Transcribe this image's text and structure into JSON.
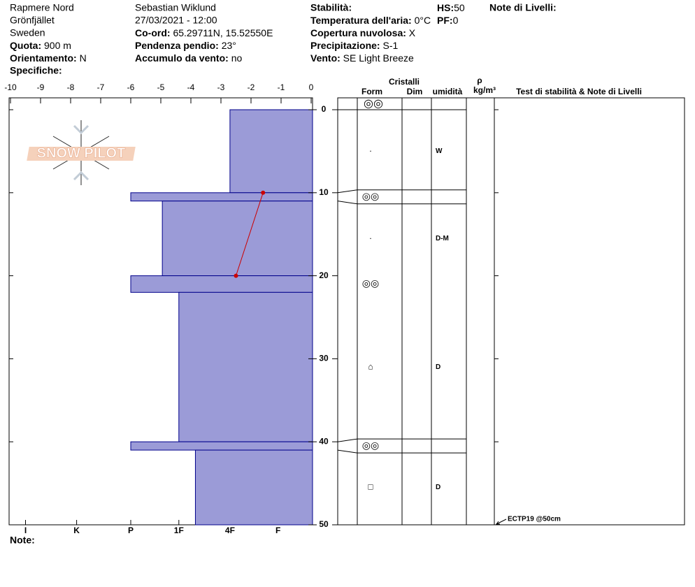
{
  "header": {
    "site": "Rapmere Nord",
    "area": "Grönfjället",
    "country": "Sweden",
    "elevation": {
      "label": "Quota:",
      "value": "900 m"
    },
    "aspect": {
      "label": "Orientamento:",
      "value": "N"
    },
    "specifics": {
      "label": "Specifiche:"
    },
    "observer": "Sebastian Wiklund",
    "datetime": "27/03/2021 - 12:00",
    "coords": {
      "label": "Co-ord:",
      "value": "65.29711N, 15.52550E"
    },
    "slope": {
      "label": "Pendenza pendio:",
      "value": "23°"
    },
    "wind_loading": {
      "label": "Accumulo da vento:",
      "value": "no"
    },
    "stability": {
      "label": "Stabilità:"
    },
    "air_temp": {
      "label": "Temperatura dell'aria:",
      "value": "0°C"
    },
    "cloud": {
      "label": "Copertura nuvolosa:",
      "value": "X"
    },
    "precip": {
      "label": "Precipitazione:",
      "value": "S-1"
    },
    "wind": {
      "label": "Vento:",
      "value": "SE  Light Breeze"
    },
    "hs": {
      "label": "HS:",
      "value": "50"
    },
    "pf": {
      "label": "PF:",
      "value": "0"
    },
    "layer_notes": {
      "label": "Note di Livelli:"
    },
    "notes": {
      "label": "Note:"
    },
    "logo": "SNOW PILOT"
  },
  "chart_data": {
    "type": "snow-profile",
    "xlim": [
      -10,
      0
    ],
    "xticks": [
      -10,
      -9,
      -8,
      -7,
      -6,
      -5,
      -4,
      -3,
      -2,
      -1,
      0
    ],
    "ylim": [
      0,
      50
    ],
    "yticks": [
      0,
      10,
      20,
      30,
      40,
      50
    ],
    "hardness_ticks": [
      {
        "value": -9.5,
        "label": "I"
      },
      {
        "value": -7.8,
        "label": "K"
      },
      {
        "value": -6,
        "label": "P"
      },
      {
        "value": -4.4,
        "label": "1F"
      },
      {
        "value": -2.7,
        "label": "4F"
      },
      {
        "value": -1.1,
        "label": "F"
      }
    ],
    "layers": {
      "color": "#9b9bd7",
      "top": [
        0,
        10,
        11,
        20,
        22,
        40,
        41
      ],
      "bottom": [
        10,
        11,
        20,
        22,
        40,
        41,
        50
      ],
      "hardness": [
        -2.7,
        -6,
        -4.95,
        -6,
        -4.4,
        -6,
        -3.85
      ]
    },
    "crystals": {
      "surface_form": "◎◎",
      "form": [
        "·",
        "◎◎",
        "·",
        "◎◎",
        "⌂",
        "◎◎",
        "□"
      ],
      "moisture": [
        "W",
        null,
        "D-M",
        null,
        "D",
        null,
        "D"
      ]
    },
    "temperature": {
      "color": "#cc0000",
      "depths": [
        10,
        20
      ],
      "values": [
        -1.6,
        -2.5
      ]
    },
    "columns": {
      "crystals": "Cristalli",
      "form": "Form",
      "dim": "Dim",
      "moisture": "umidità",
      "rho": "ρ",
      "density_unit": "kg/m³",
      "tests": "Test di stabilità & Note di Livelli"
    },
    "tests": [
      {
        "depth": 50,
        "label": "ECTP19 @50cm"
      }
    ]
  }
}
